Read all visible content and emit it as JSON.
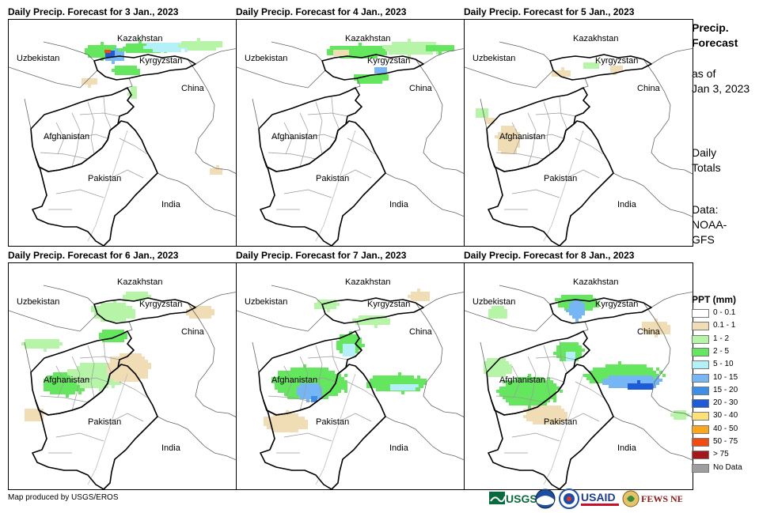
{
  "panels": [
    {
      "title": "Daily Precip. Forecast for 3 Jan., 2023",
      "day": 3
    },
    {
      "title": "Daily Precip. Forecast for 4 Jan., 2023",
      "day": 4
    },
    {
      "title": "Daily Precip. Forecast for 5 Jan., 2023",
      "day": 5
    },
    {
      "title": "Daily Precip. Forecast for 6 Jan., 2023",
      "day": 6
    },
    {
      "title": "Daily Precip. Forecast for 7 Jan., 2023",
      "day": 7
    },
    {
      "title": "Daily Precip. Forecast for 8 Jan., 2023",
      "day": 8
    }
  ],
  "map_labels": {
    "kazakhstan": "Kazakhstan",
    "uzbekistan": "Uzbekistan",
    "kyrgyzstan": "Kyrgyzstan",
    "china": "China",
    "afghanistan": "Afghanistan",
    "pakistan": "Pakistan",
    "india": "India"
  },
  "sidebar": {
    "title_line1": "Precip.",
    "title_line2": "Forecast",
    "asof_line1": "as of",
    "asof_line2": "Jan 3, 2023",
    "daily_line1": "Daily",
    "daily_line2": "Totals",
    "data_line1": "Data:",
    "data_line2": "NOAA-",
    "data_line3": "GFS"
  },
  "legend": {
    "title": "PPT (mm)",
    "items": [
      {
        "label": "0 - 0.1",
        "color": "#ffffff"
      },
      {
        "label": "0.1 - 1",
        "color": "#f1ddb5"
      },
      {
        "label": "1 - 2",
        "color": "#b6f5a8"
      },
      {
        "label": "2 - 5",
        "color": "#65e65f"
      },
      {
        "label": "5 - 10",
        "color": "#b4f0f8"
      },
      {
        "label": "10 - 15",
        "color": "#76b6f5"
      },
      {
        "label": "15 - 20",
        "color": "#3d8ee8"
      },
      {
        "label": "20 - 30",
        "color": "#1e5bd6"
      },
      {
        "label": "30 - 40",
        "color": "#fde27a"
      },
      {
        "label": "40 - 50",
        "color": "#fba61f"
      },
      {
        "label": "50 - 75",
        "color": "#f24b10"
      },
      {
        "label": "> 75",
        "color": "#a6171b"
      },
      {
        "label": "No Data",
        "color": "#9e9e9e"
      }
    ]
  },
  "footer": {
    "credit": "Map produced by USGS/EROS",
    "logos": [
      "usgs-logo",
      "noaa-logo",
      "nws-logo",
      "usaid-logo",
      "fews-net-logo"
    ]
  }
}
